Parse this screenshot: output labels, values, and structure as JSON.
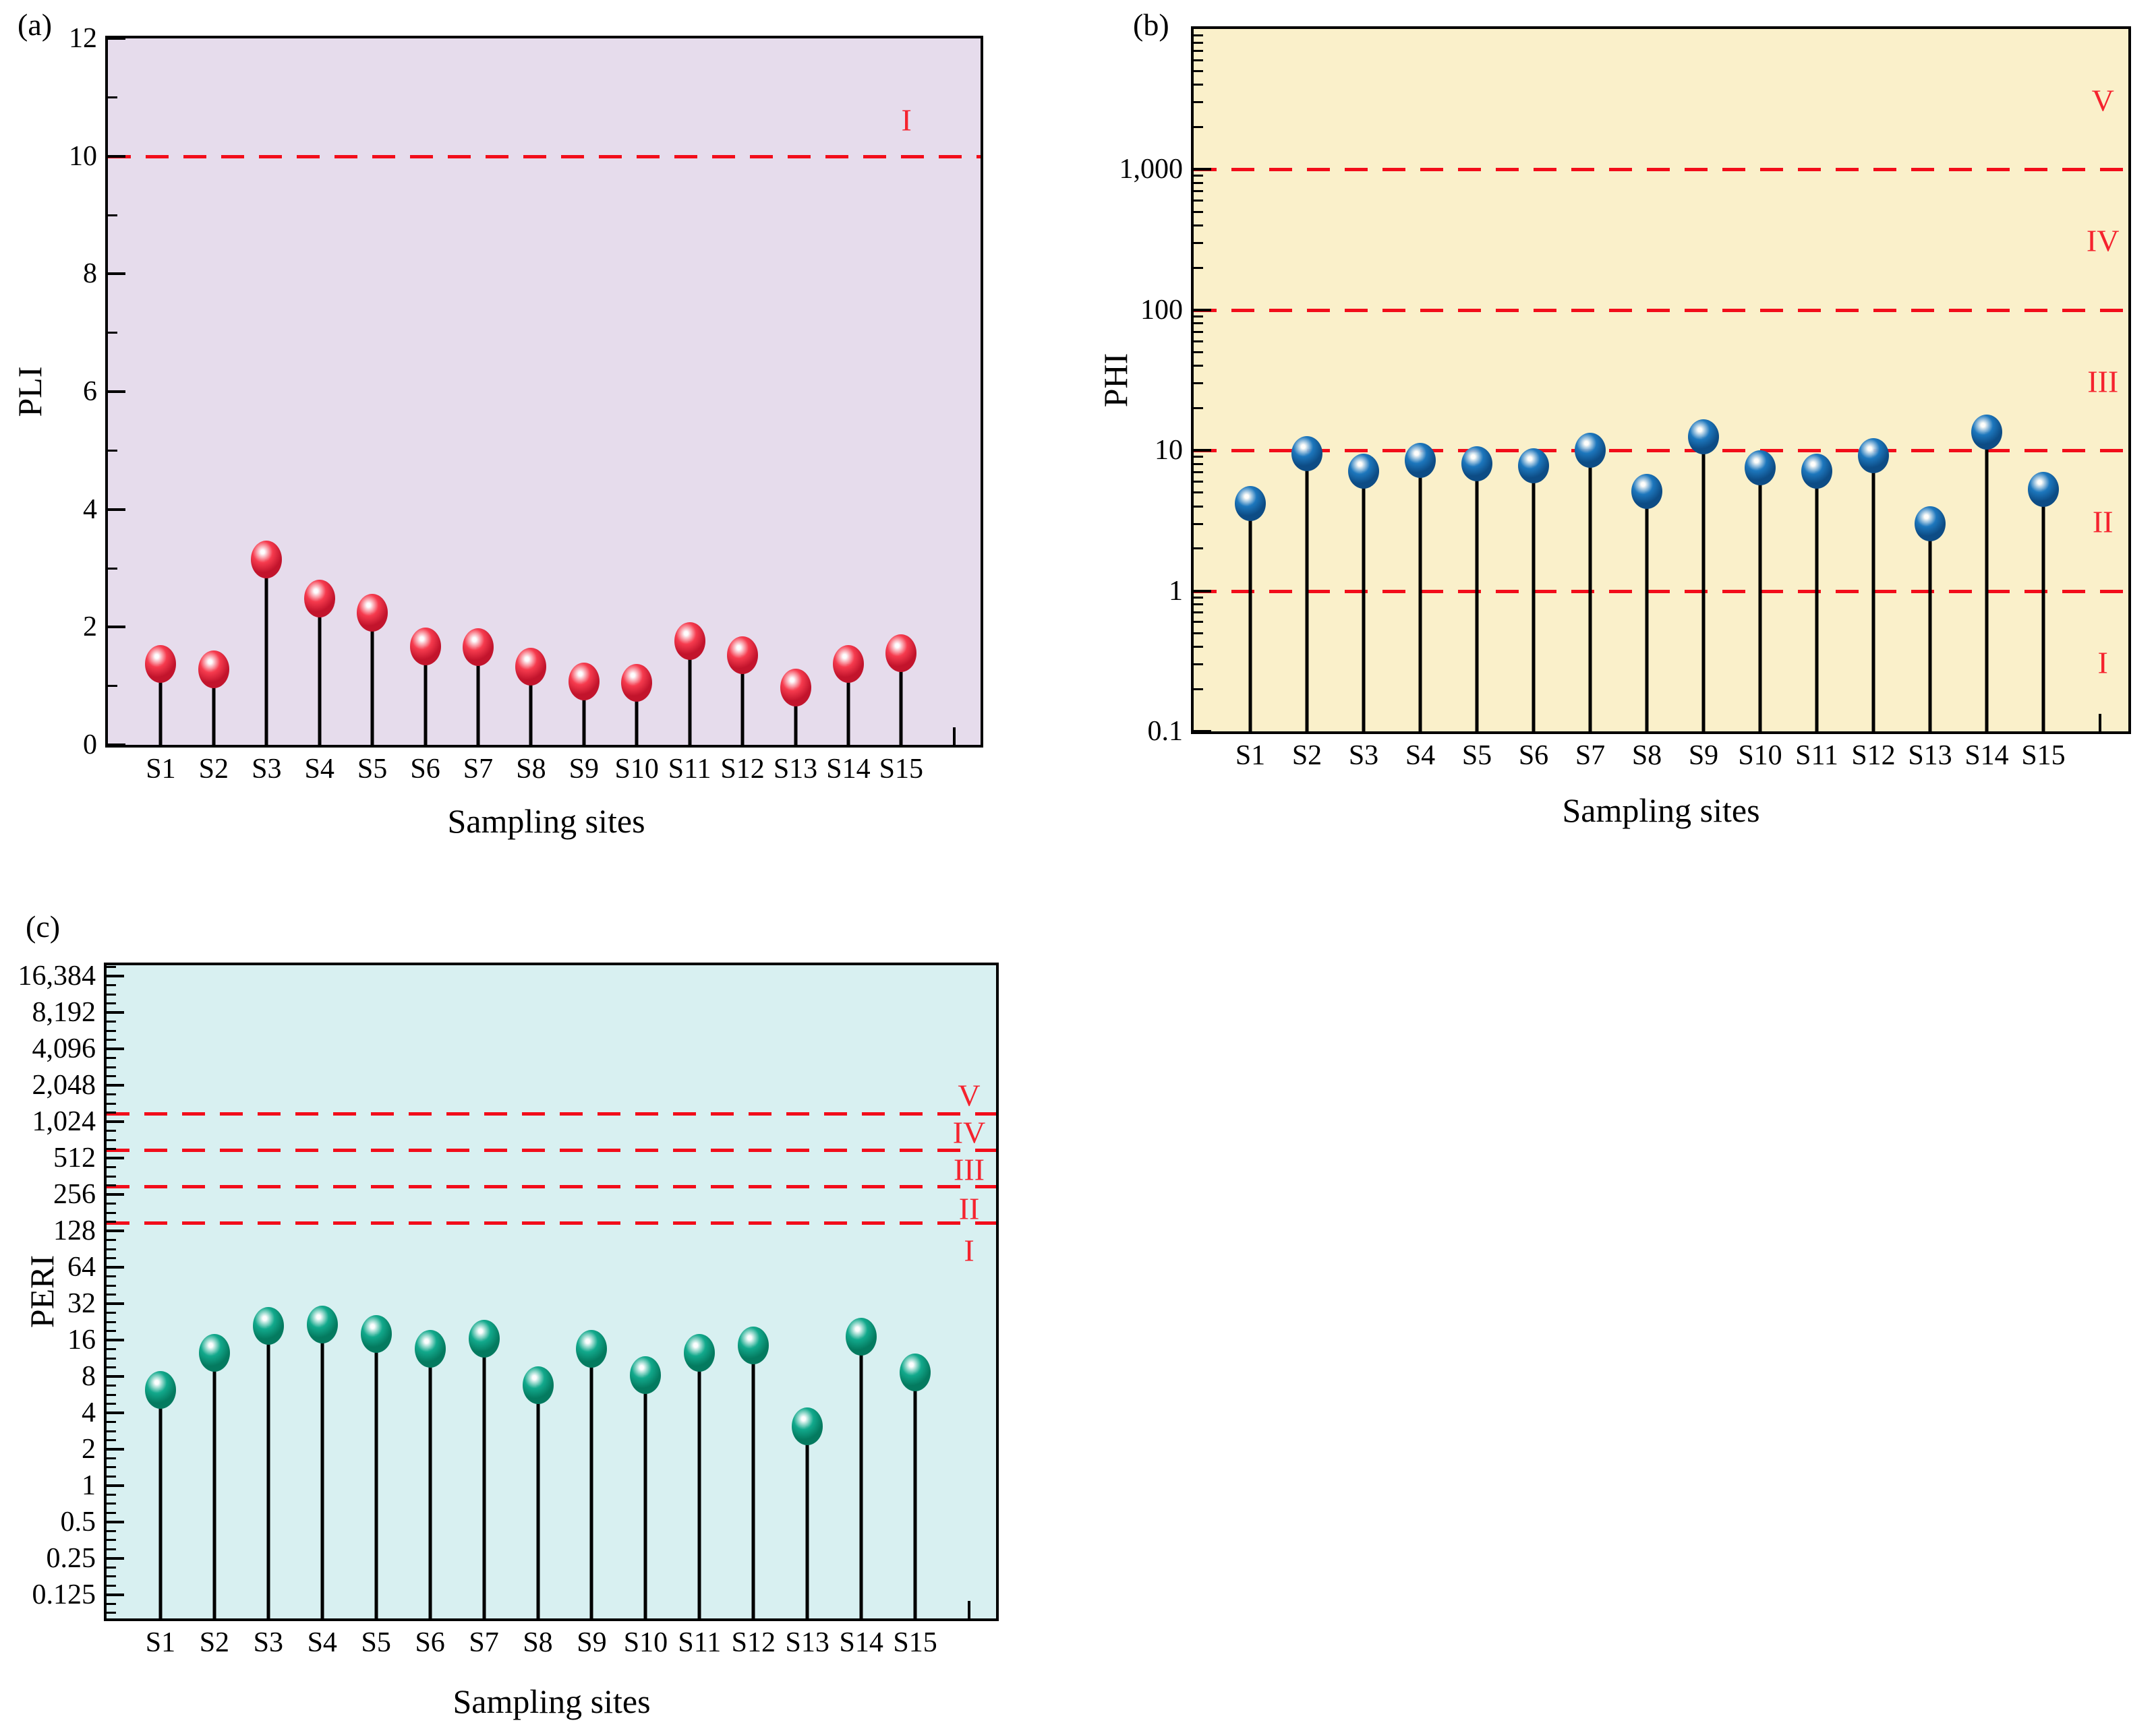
{
  "figure_title": "",
  "chart_data": [
    {
      "id": "a",
      "panel": "(a)",
      "type": "scatter",
      "variant": "lollipop",
      "xlabel": "Sampling sites",
      "ylabel": "PLI",
      "legend": "none",
      "grid": "off",
      "categories": [
        "S1",
        "S2",
        "S3",
        "S4",
        "S5",
        "S6",
        "S7",
        "S8",
        "S9",
        "S10",
        "S11",
        "S12",
        "S13",
        "S14",
        "S15"
      ],
      "values": [
        1.37,
        1.28,
        3.15,
        2.48,
        2.25,
        1.67,
        1.66,
        1.33,
        1.08,
        1.05,
        1.76,
        1.52,
        0.97,
        1.37,
        1.56
      ],
      "yscale": "linear",
      "ylim": [
        0,
        12
      ],
      "xlim": [
        0,
        16.5
      ],
      "yticks_major": [
        0,
        2,
        4,
        6,
        8,
        10,
        12
      ],
      "ytick_labels": [
        "0",
        "2",
        "4",
        "6",
        "8",
        "10",
        "12"
      ],
      "yticks_minor": [
        1,
        3,
        5,
        7,
        9,
        11
      ],
      "xticks_minor": [
        16
      ],
      "ref_lines": [
        10
      ],
      "zone_labels": [
        {
          "text": "I",
          "value": 10.62,
          "x": 15.1
        }
      ],
      "colors": {
        "bg": "#e6dcec",
        "marker": "#f63b4e",
        "marker_dark": "#c2142c",
        "ref": "#f20d1a",
        "zone": "#f5232e",
        "stem": "#000000"
      }
    },
    {
      "id": "b",
      "panel": "(b)",
      "type": "scatter",
      "variant": "lollipop",
      "xlabel": "Sampling sites",
      "ylabel": "PHI",
      "legend": "none",
      "grid": "off",
      "categories": [
        "S1",
        "S2",
        "S3",
        "S4",
        "S5",
        "S6",
        "S7",
        "S8",
        "S9",
        "S10",
        "S11",
        "S12",
        "S13",
        "S14",
        "S15"
      ],
      "values": [
        4.2,
        9.5,
        7.1,
        8.5,
        8.0,
        7.8,
        10.0,
        5.1,
        12.5,
        7.5,
        7.1,
        9.2,
        3.0,
        13.5,
        5.3
      ],
      "yscale": "log",
      "log_base": 10,
      "ylim": [
        0.1,
        10000
      ],
      "xlim": [
        0,
        16.5
      ],
      "yticks_major": [
        1000,
        100,
        10,
        1,
        0.1
      ],
      "ytick_labels": [
        "1,000",
        "100",
        "10",
        "1",
        "0.1"
      ],
      "yticks_minor": [],
      "xticks_minor": [
        16
      ],
      "ref_lines": [
        1000,
        100,
        10,
        1
      ],
      "zone_labels": [
        {
          "text": "V",
          "value": 3100,
          "x": 16.05
        },
        {
          "text": "IV",
          "value": 310,
          "x": 16.05
        },
        {
          "text": "III",
          "value": 31,
          "x": 16.05
        },
        {
          "text": "II",
          "value": 3.1,
          "x": 16.05
        },
        {
          "text": "I",
          "value": 0.31,
          "x": 16.05
        }
      ],
      "colors": {
        "bg": "#faf0ca",
        "marker": "#1d77bd",
        "marker_dark": "#0d4c85",
        "ref": "#f20d1a",
        "zone": "#f5232e",
        "stem": "#000000"
      }
    },
    {
      "id": "c",
      "panel": "(c)",
      "type": "scatter",
      "variant": "lollipop",
      "xlabel": "Sampling sites",
      "ylabel": "PERI",
      "legend": "none",
      "grid": "off",
      "categories": [
        "S1",
        "S2",
        "S3",
        "S4",
        "S5",
        "S6",
        "S7",
        "S8",
        "S9",
        "S10",
        "S11",
        "S12",
        "S13",
        "S14",
        "S15"
      ],
      "values": [
        6.2,
        12.5,
        21,
        21.5,
        18,
        13.5,
        16.5,
        6.8,
        13.5,
        8.2,
        12.5,
        14.5,
        3.1,
        17,
        8.7
      ],
      "yscale": "log",
      "log_base": 2,
      "ylim": [
        0.0797,
        20171
      ],
      "xlim": [
        0,
        16.5
      ],
      "yticks_major": [
        16384,
        8192,
        4096,
        2048,
        1024,
        512,
        256,
        128,
        64,
        32,
        16,
        8,
        4,
        2,
        1,
        0.5,
        0.25,
        0.125
      ],
      "ytick_labels": [
        "16,384",
        "8,192",
        "4,096",
        "2,048",
        "1,024",
        "512",
        "256",
        "128",
        "64",
        "32",
        "16",
        "8",
        "4",
        "2",
        "1",
        "0.5",
        "0.25",
        "0.125"
      ],
      "yticks_minor": [],
      "xticks_minor": [
        16
      ],
      "ref_lines": [
        1200,
        600,
        300,
        150
      ],
      "zone_labels": [
        {
          "text": "V",
          "value": 1700,
          "x": 16.0
        },
        {
          "text": "IV",
          "value": 830,
          "x": 16.0
        },
        {
          "text": "III",
          "value": 410,
          "x": 16.0
        },
        {
          "text": "II",
          "value": 195,
          "x": 16.0
        },
        {
          "text": "I",
          "value": 88,
          "x": 16.0
        }
      ],
      "colors": {
        "bg": "#d8f0f1",
        "marker": "#12a98c",
        "marker_dark": "#047a5f",
        "ref": "#f20d1a",
        "zone": "#f5232e",
        "stem": "#000000"
      }
    }
  ]
}
